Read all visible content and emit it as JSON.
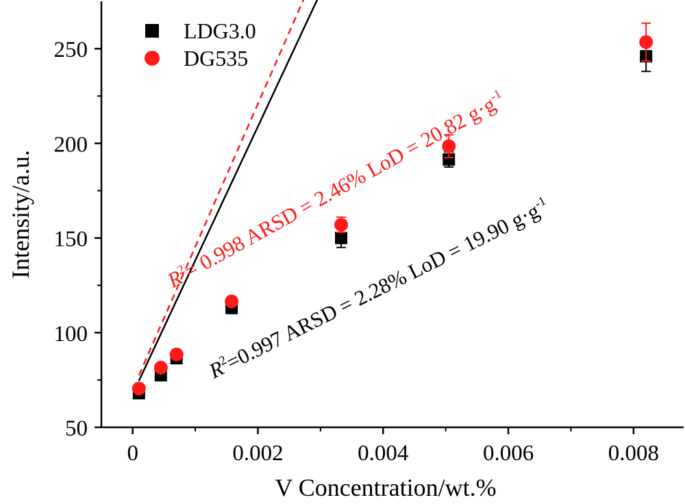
{
  "chart_data": {
    "type": "scatter",
    "xlabel": "V Concentration/wt.%",
    "ylabel": "Intensity/a.u.",
    "xlim": [
      -0.0005,
      0.0088
    ],
    "ylim": [
      50,
      275
    ],
    "xticks": [
      0,
      0.002,
      0.004,
      0.006,
      0.008
    ],
    "xtick_labels": [
      "0",
      "0.002",
      "0.004",
      "0.006",
      "0.008"
    ],
    "yticks": [
      50,
      100,
      150,
      200,
      250
    ],
    "ytick_labels": [
      "50",
      "100",
      "150",
      "200",
      "250"
    ],
    "grid": false,
    "legend_position": "top-left",
    "series": [
      {
        "name": "LDG3.0",
        "marker": "square",
        "color": "#000000",
        "fit_style": "solid",
        "x": [
          0.0001,
          0.00045,
          0.0007,
          0.00158,
          0.00333,
          0.00505,
          0.0082
        ],
        "y": [
          68,
          77.5,
          86.5,
          113,
          150,
          191.5,
          246
        ],
        "err": [
          1.5,
          1.5,
          1.5,
          2,
          5,
          4,
          8
        ],
        "fit": [
          67.5,
          70.7,
          -1130
        ],
        "annotation": {
          "r2_label": "R",
          "r2_sup": "2",
          "r2_value": "=0.997  ARSD = 2.28%  LoD = 19.90 g·g",
          "unit_sup": "-1"
        }
      },
      {
        "name": "DG535",
        "marker": "circle",
        "color": "#ff1a1a",
        "fit_style": "dashed",
        "x": [
          0.0001,
          0.00045,
          0.0007,
          0.00158,
          0.00333,
          0.00505,
          0.0082
        ],
        "y": [
          70.5,
          81.5,
          88.5,
          116.5,
          157,
          198.5,
          253.5
        ],
        "err": [
          1.5,
          1.5,
          1.5,
          2,
          4,
          6,
          10
        ],
        "fit": [
          69.9,
          75.5,
          -1350
        ],
        "annotation": {
          "r2_label": "R",
          "r2_sup": "2",
          "r2_value": "= 0.998  ARSD = 2.46%  LoD = 20.82 g·g",
          "unit_sup": "-1"
        }
      }
    ]
  }
}
